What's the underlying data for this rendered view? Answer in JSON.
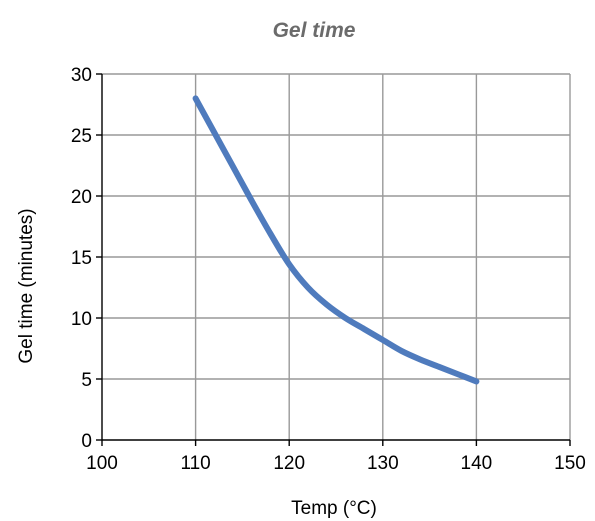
{
  "chart_data": {
    "type": "line",
    "title": "Gel time",
    "xlabel": "Temp (°C)",
    "ylabel": "Gel time (minutes)",
    "xlim": [
      100,
      150
    ],
    "ylim": [
      0,
      30
    ],
    "x_ticks": [
      100,
      110,
      120,
      130,
      140,
      150
    ],
    "y_ticks": [
      0,
      5,
      10,
      15,
      20,
      25,
      30
    ],
    "grid": true,
    "legend": "none",
    "series": [
      {
        "color": "#4f7bbd",
        "x": [
          110,
          112,
          114,
          116,
          118,
          120,
          122,
          124,
          126,
          128,
          130,
          132,
          134,
          136,
          138,
          140
        ],
        "y": [
          28.0,
          25.2,
          22.4,
          19.6,
          16.9,
          14.4,
          12.5,
          11.1,
          10.0,
          9.1,
          8.2,
          7.3,
          6.6,
          6.0,
          5.4,
          4.8
        ]
      }
    ],
    "colors": {
      "grid": "#999999",
      "axis": "#000000",
      "title": "#6b6b6b"
    }
  }
}
